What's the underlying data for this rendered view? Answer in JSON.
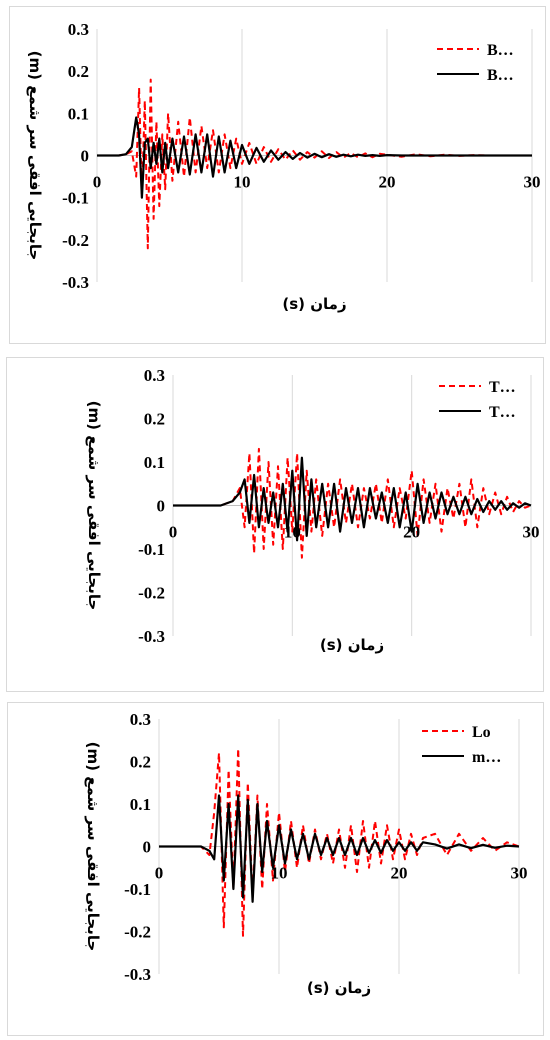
{
  "chart_data": [
    {
      "type": "line",
      "xlabel": "زمان (s)",
      "ylabel": "جابجایی افقی سر شمع (m)",
      "xlim": [
        0,
        30
      ],
      "ylim": [
        -0.3,
        0.3
      ],
      "x_ticks": [
        "0",
        "10",
        "20",
        "30"
      ],
      "y_ticks": [
        "0.3",
        "0.2",
        "0.1",
        "0",
        "-0.1",
        "-0.2",
        "-0.3"
      ],
      "grid": "vertical",
      "legend_position": "top-right",
      "series": [
        {
          "name": "B…",
          "color": "#ff0000",
          "dash": "dashed",
          "x": [
            0,
            1.5,
            2.0,
            2.4,
            2.7,
            2.9,
            3.1,
            3.3,
            3.5,
            3.7,
            3.9,
            4.1,
            4.3,
            4.5,
            4.7,
            4.9,
            5.2,
            5.6,
            6.0,
            6.4,
            6.8,
            7.2,
            7.6,
            8.0,
            8.4,
            8.8,
            9.2,
            9.6,
            10.0,
            10.5,
            11.0,
            11.5,
            12.0,
            12.5,
            13.0,
            13.5,
            14.0,
            14.5,
            15.0,
            15.5,
            16.0,
            16.5,
            17.0,
            17.5,
            18.0,
            18.5,
            19.0,
            19.5,
            20.0,
            21.0,
            22.0,
            23.0,
            24.0,
            25.0,
            26.0,
            27.0,
            28.0,
            29.0,
            30.0
          ],
          "y": [
            0,
            0,
            0.003,
            0.01,
            -0.05,
            0.16,
            -0.1,
            0.13,
            -0.22,
            0.18,
            -0.15,
            0.08,
            -0.12,
            0.05,
            -0.08,
            0.1,
            -0.06,
            0.08,
            -0.05,
            0.09,
            -0.04,
            0.07,
            -0.03,
            0.06,
            -0.04,
            0.05,
            -0.03,
            0.04,
            -0.02,
            0.03,
            -0.02,
            0.02,
            -0.015,
            0.015,
            -0.01,
            0.012,
            -0.01,
            0.008,
            -0.005,
            0.01,
            -0.006,
            0.008,
            -0.005,
            0.006,
            -0.004,
            0.005,
            -0.004,
            0.004,
            0.002,
            -0.003,
            0.003,
            -0.002,
            0.002,
            -0.001,
            0.001,
            0,
            0,
            0,
            0
          ]
        },
        {
          "name": "B…",
          "color": "#000000",
          "dash": "solid",
          "x": [
            0,
            1.5,
            2.0,
            2.4,
            2.7,
            2.9,
            3.1,
            3.3,
            3.5,
            3.7,
            3.9,
            4.1,
            4.3,
            4.5,
            4.7,
            4.9,
            5.2,
            5.6,
            6.0,
            6.4,
            6.8,
            7.2,
            7.6,
            8.0,
            8.4,
            8.8,
            9.2,
            9.6,
            10.0,
            10.5,
            11.0,
            11.5,
            12.0,
            12.5,
            13.0,
            13.5,
            14.0,
            14.5,
            15.0,
            15.5,
            16.0,
            16.5,
            17.0,
            17.5,
            18.0,
            18.5,
            19.0,
            19.5,
            20.0,
            21.0,
            22.0,
            23.0,
            24.0,
            25.0,
            26.0,
            27.0,
            28.0,
            29.0,
            30.0
          ],
          "y": [
            0,
            0,
            0.003,
            0.02,
            0.09,
            0.05,
            -0.1,
            0.03,
            0.04,
            -0.03,
            0.03,
            -0.02,
            0.04,
            -0.04,
            0.03,
            -0.03,
            0.04,
            -0.04,
            0.045,
            -0.045,
            0.05,
            -0.04,
            0.05,
            -0.05,
            0.045,
            -0.04,
            0.035,
            -0.03,
            0.025,
            -0.02,
            0.018,
            -0.015,
            0.012,
            -0.01,
            0.008,
            -0.008,
            0.006,
            -0.005,
            0.004,
            -0.004,
            0.003,
            -0.003,
            0.002,
            -0.002,
            0.002,
            -0.001,
            0.001,
            -0.001,
            0.001,
            0,
            0,
            0,
            0,
            0,
            0,
            0,
            0,
            0,
            0
          ]
        }
      ]
    },
    {
      "type": "line",
      "xlabel": "زمان (s)",
      "ylabel": "جابجایی افقی سر شمع (m)",
      "xlim": [
        0,
        30
      ],
      "ylim": [
        -0.3,
        0.3
      ],
      "x_ticks": [
        "0",
        "10",
        "20",
        "30"
      ],
      "y_ticks": [
        "0.3",
        "0.2",
        "0.1",
        "0",
        "-0.1",
        "-0.2",
        "-0.3"
      ],
      "grid": "vertical",
      "legend_position": "top-right",
      "series": [
        {
          "name": "T…",
          "color": "#ff0000",
          "dash": "dashed",
          "x": [
            0,
            2,
            4,
            5.0,
            5.6,
            6.0,
            6.4,
            6.8,
            7.2,
            7.6,
            8.0,
            8.4,
            8.8,
            9.2,
            9.6,
            10.0,
            10.4,
            10.8,
            11.2,
            11.6,
            12.0,
            12.5,
            13.0,
            13.5,
            14.0,
            14.5,
            15.0,
            15.5,
            16.0,
            16.5,
            17.0,
            17.5,
            18.0,
            18.5,
            19.0,
            19.5,
            20.0,
            20.5,
            21.0,
            21.5,
            22.0,
            22.5,
            23.0,
            23.5,
            24.0,
            24.5,
            25.0,
            25.5,
            26.0,
            26.5,
            27.0,
            27.5,
            28.0,
            28.5,
            29.0,
            29.5,
            30.0
          ],
          "y": [
            0,
            0,
            0,
            0.01,
            0.04,
            -0.05,
            0.12,
            -0.11,
            0.13,
            -0.1,
            0.1,
            -0.09,
            0.09,
            -0.1,
            0.11,
            -0.06,
            0.12,
            -0.12,
            0.08,
            -0.06,
            0.06,
            -0.07,
            0.05,
            -0.05,
            0.06,
            -0.04,
            0.05,
            -0.05,
            0.04,
            -0.03,
            0.05,
            -0.04,
            0.06,
            -0.05,
            0.04,
            -0.03,
            0.08,
            -0.07,
            0.06,
            -0.04,
            0.05,
            -0.06,
            0.04,
            -0.03,
            0.05,
            -0.05,
            0.06,
            -0.05,
            0.04,
            -0.02,
            0.03,
            -0.02,
            0.02,
            -0.015,
            0.01,
            -0.005,
            0
          ]
        },
        {
          "name": "T…",
          "color": "#000000",
          "dash": "solid",
          "x": [
            0,
            2,
            4,
            5.0,
            5.6,
            6.0,
            6.4,
            6.8,
            7.2,
            7.6,
            8.0,
            8.4,
            8.8,
            9.2,
            9.6,
            10.0,
            10.4,
            10.8,
            11.2,
            11.6,
            12.0,
            12.5,
            13.0,
            13.5,
            14.0,
            14.5,
            15.0,
            15.5,
            16.0,
            16.5,
            17.0,
            17.5,
            18.0,
            18.5,
            19.0,
            19.5,
            20.0,
            20.5,
            21.0,
            21.5,
            22.0,
            22.5,
            23.0,
            23.5,
            24.0,
            24.5,
            25.0,
            25.5,
            26.0,
            26.5,
            27.0,
            27.5,
            28.0,
            28.5,
            29.0,
            29.5,
            30.0
          ],
          "y": [
            0,
            0,
            0,
            0.01,
            0.03,
            0.06,
            -0.04,
            0.07,
            -0.05,
            0.04,
            -0.04,
            0.03,
            -0.05,
            0.05,
            -0.06,
            0.08,
            -0.08,
            0.11,
            -0.07,
            0.06,
            -0.05,
            0.05,
            -0.05,
            0.05,
            -0.06,
            0.04,
            -0.04,
            0.04,
            -0.05,
            0.04,
            -0.03,
            0.03,
            -0.04,
            0.04,
            -0.05,
            0.03,
            -0.06,
            0.05,
            -0.04,
            0.03,
            -0.03,
            0.03,
            -0.02,
            0.02,
            -0.02,
            0.02,
            -0.02,
            0.015,
            -0.015,
            0.01,
            -0.01,
            0.01,
            -0.01,
            0.005,
            -0.005,
            0.005,
            0
          ]
        }
      ]
    },
    {
      "type": "line",
      "xlabel": "زمان (s)",
      "ylabel": "جابجایی افقی سر شمع (m)",
      "xlim": [
        0,
        30
      ],
      "ylim": [
        -0.3,
        0.3
      ],
      "x_ticks": [
        "0",
        "10",
        "20",
        "30"
      ],
      "y_ticks": [
        "0.3",
        "0.2",
        "0.1",
        "0",
        "-0.1",
        "-0.2",
        "-0.3"
      ],
      "grid": "vertical",
      "legend_position": "top-right",
      "series": [
        {
          "name": "Lo m…",
          "color": "#ff0000",
          "dash": "dashed",
          "x": [
            0,
            2,
            3.5,
            4.2,
            4.6,
            5.0,
            5.4,
            5.8,
            6.2,
            6.6,
            7.0,
            7.4,
            7.8,
            8.2,
            8.6,
            9.0,
            9.5,
            10.0,
            10.5,
            11.0,
            11.5,
            12.0,
            12.5,
            13.0,
            13.5,
            14.0,
            14.5,
            15.0,
            15.5,
            16.0,
            16.5,
            17.0,
            17.5,
            18.0,
            18.5,
            19.0,
            19.5,
            20.0,
            20.5,
            21.0,
            21.5,
            22.0,
            23.0,
            24.0,
            25.0,
            26.0,
            27.0,
            28.0,
            29.0,
            30.0
          ],
          "y": [
            0,
            0,
            0,
            -0.02,
            0.08,
            0.22,
            -0.19,
            0.18,
            -0.1,
            0.23,
            -0.21,
            0.15,
            -0.12,
            0.12,
            -0.1,
            0.1,
            -0.08,
            0.08,
            -0.06,
            0.06,
            -0.05,
            0.05,
            -0.04,
            0.04,
            -0.03,
            0.03,
            -0.04,
            0.04,
            -0.05,
            0.05,
            -0.06,
            0.06,
            -0.05,
            0.06,
            -0.04,
            0.05,
            -0.03,
            0.04,
            -0.03,
            0.03,
            -0.02,
            0.02,
            0.03,
            -0.02,
            0.03,
            -0.01,
            0.02,
            -0.01,
            0.01,
            0
          ]
        },
        {
          "name": "Lo m…",
          "color": "#000000",
          "dash": "solid",
          "x": [
            0,
            2,
            3.5,
            4.2,
            4.6,
            5.0,
            5.4,
            5.8,
            6.2,
            6.6,
            7.0,
            7.4,
            7.8,
            8.2,
            8.6,
            9.0,
            9.5,
            10.0,
            10.5,
            11.0,
            11.5,
            12.0,
            12.5,
            13.0,
            13.5,
            14.0,
            14.5,
            15.0,
            15.5,
            16.0,
            16.5,
            17.0,
            17.5,
            18.0,
            18.5,
            19.0,
            19.5,
            20.0,
            20.5,
            21.0,
            21.5,
            22.0,
            23.0,
            24.0,
            25.0,
            26.0,
            27.0,
            28.0,
            29.0,
            30.0
          ],
          "y": [
            0,
            0,
            0,
            -0.01,
            -0.03,
            0.12,
            -0.08,
            0.1,
            -0.1,
            0.12,
            -0.12,
            0.11,
            -0.13,
            0.1,
            -0.06,
            0.06,
            -0.05,
            0.05,
            -0.04,
            0.04,
            -0.03,
            0.03,
            -0.03,
            0.03,
            -0.02,
            0.02,
            -0.02,
            0.02,
            -0.02,
            0.02,
            -0.02,
            0.02,
            -0.015,
            0.015,
            -0.015,
            0.015,
            -0.01,
            0.01,
            -0.01,
            0.01,
            -0.01,
            0.01,
            0.005,
            -0.005,
            0.005,
            -0.004,
            0.004,
            -0.003,
            0.002,
            0
          ]
        }
      ]
    }
  ]
}
